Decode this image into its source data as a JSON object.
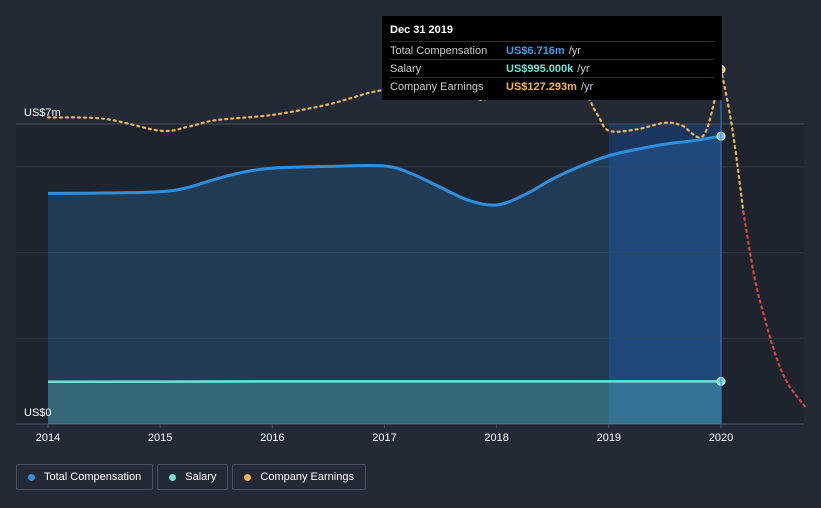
{
  "tooltip": {
    "date": "Dec 31 2019",
    "rows": [
      {
        "label": "Total Compensation",
        "value": "US$6.716m",
        "unit": "/yr",
        "color": "#3a9fe8"
      },
      {
        "label": "Salary",
        "value": "US$995.000k",
        "unit": "/yr",
        "color": "#6fe3d6"
      },
      {
        "label": "Company Earnings",
        "value": "US$127.293m",
        "unit": "/yr",
        "color": "#f0b44e"
      }
    ]
  },
  "legend": [
    {
      "label": "Total Compensation",
      "color": "#2d8fe0"
    },
    {
      "label": "Salary",
      "color": "#6fe3d6"
    },
    {
      "label": "Company Earnings",
      "color": "#f0b44e"
    }
  ],
  "chart_data": {
    "type": "area",
    "title": "",
    "xlabel": "",
    "ylabel": "",
    "y_axis_labels": [
      "US$7m",
      "US$0"
    ],
    "ylim": [
      0,
      7
    ],
    "xlim": [
      2014,
      2020.75
    ],
    "x_ticks": [
      "2014",
      "2015",
      "2016",
      "2017",
      "2018",
      "2019",
      "2020"
    ],
    "grid": true,
    "legend_position": "bottom-left",
    "series": [
      {
        "name": "Total Compensation",
        "color": "#2d8fe0",
        "x": [
          2014.0,
          2014.5,
          2015.0,
          2015.25,
          2015.5,
          2015.75,
          2016.0,
          2016.5,
          2017.0,
          2017.25,
          2017.5,
          2017.75,
          2018.0,
          2018.25,
          2018.5,
          2018.75,
          2019.0,
          2019.25,
          2019.5,
          2019.75,
          2020.0
        ],
        "values": [
          5.38,
          5.39,
          5.42,
          5.52,
          5.72,
          5.88,
          5.97,
          6.01,
          6.02,
          5.83,
          5.52,
          5.22,
          5.11,
          5.35,
          5.72,
          6.02,
          6.26,
          6.41,
          6.53,
          6.61,
          6.716
        ]
      },
      {
        "name": "Salary",
        "color": "#6fe3d6",
        "x": [
          2014.0,
          2015.0,
          2016.0,
          2017.0,
          2018.0,
          2019.0,
          2020.0
        ],
        "values": [
          0.985,
          0.99,
          0.995,
          0.995,
          0.995,
          0.995,
          0.995
        ]
      },
      {
        "name": "Company Earnings",
        "color": "#f0b44e",
        "unit": "US$m",
        "x": [
          2014.0,
          2014.5,
          2015.0,
          2015.25,
          2015.5,
          2016.0,
          2016.5,
          2017.0,
          2017.5,
          2017.75,
          2017.9,
          2018.0,
          2018.25,
          2018.5,
          2018.75,
          2018.9,
          2019.0,
          2019.25,
          2019.5,
          2019.65,
          2019.85,
          2020.0
        ],
        "values": [
          109.0,
          108.5,
          104.0,
          105.5,
          108.0,
          110.0,
          114.0,
          119.5,
          119.0,
          117.5,
          116.0,
          125.0,
          122.0,
          119.0,
          119.5,
          110.0,
          104.0,
          104.5,
          107.0,
          106.0,
          102.5,
          127.293
        ]
      },
      {
        "name": "Company Earnings (forecast)",
        "color": "#e0413a",
        "unit": "US$m",
        "x": [
          2020.0,
          2020.1,
          2020.2,
          2020.3,
          2020.4,
          2020.5,
          2020.6,
          2020.75
        ],
        "values": [
          127.293,
          105.0,
          73.0,
          48.0,
          31.0,
          17.0,
          7.5,
          -1.0
        ]
      }
    ]
  }
}
